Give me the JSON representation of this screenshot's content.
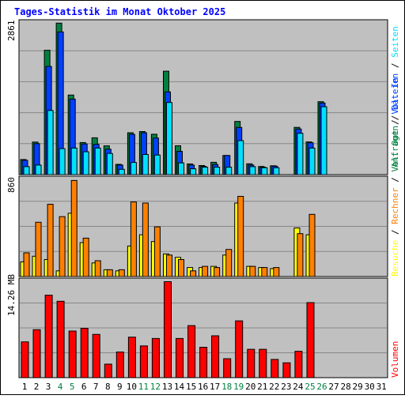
{
  "title": "Tages-Statistik im Monat Oktober 2025",
  "colors": {
    "title": "#0000ff",
    "background": "#c0c0c0",
    "anfragen": "#008040",
    "dateien": "#0040ff",
    "seiten": "#00e0ff",
    "besuche": "#ffff00",
    "rechner": "#ff8000",
    "volout": "#008040",
    "volin": "#0040ff",
    "volumen": "#ff0000",
    "weekend": "#008040"
  },
  "chart_data": [
    {
      "type": "bar",
      "name": "top-panel",
      "y_max_label": "2861",
      "ylim": [
        0,
        2861
      ],
      "x": [
        1,
        2,
        3,
        4,
        5,
        6,
        7,
        8,
        9,
        10,
        11,
        12,
        13,
        14,
        15,
        16,
        17,
        18,
        19,
        20,
        21,
        22,
        23,
        24,
        25,
        26,
        27,
        28,
        29,
        30,
        31
      ],
      "series": [
        {
          "name": "Anfragen",
          "values": [
            285,
            614,
            2345,
            2856,
            1501,
            605,
            694,
            542,
            194,
            790,
            812,
            762,
            1950,
            544,
            201,
            172,
            232,
            360,
            1003,
            204,
            153,
            167,
            0,
            891,
            617,
            1376,
            0,
            0,
            0,
            0,
            0
          ]
        },
        {
          "name": "Dateien",
          "values": [
            270,
            584,
            2040,
            2691,
            1425,
            578,
            570,
            480,
            180,
            760,
            790,
            690,
            1560,
            440,
            180,
            155,
            190,
            360,
            890,
            180,
            140,
            160,
            0,
            860,
            600,
            1350,
            0,
            0,
            0,
            0,
            0
          ]
        },
        {
          "name": "Seiten",
          "values": [
            150,
            180,
            1210,
            490,
            500,
            430,
            500,
            400,
            100,
            230,
            380,
            370,
            1360,
            220,
            110,
            140,
            140,
            140,
            640,
            150,
            130,
            130,
            0,
            780,
            500,
            1280,
            0,
            0,
            0,
            0,
            0
          ]
        }
      ]
    },
    {
      "type": "bar",
      "name": "middle-panel",
      "y_max_label": "860",
      "ylim": [
        0,
        860
      ],
      "x": [
        1,
        2,
        3,
        4,
        5,
        6,
        7,
        8,
        9,
        10,
        11,
        12,
        13,
        14,
        15,
        16,
        17,
        18,
        19,
        20,
        21,
        22,
        23,
        24,
        25,
        26,
        27,
        28,
        29,
        30,
        31
      ],
      "series": [
        {
          "name": "Besuche",
          "values": [
            130,
            180,
            150,
            50,
            560,
            300,
            120,
            60,
            50,
            270,
            370,
            310,
            200,
            170,
            80,
            80,
            90,
            190,
            650,
            90,
            80,
            70,
            0,
            430,
            370,
            0,
            0,
            0,
            0,
            0,
            0
          ]
        },
        {
          "name": "Rechner",
          "values": [
            210,
            480,
            640,
            530,
            850,
            340,
            140,
            60,
            60,
            660,
            650,
            440,
            190,
            150,
            50,
            90,
            80,
            240,
            710,
            90,
            80,
            80,
            0,
            380,
            550,
            0,
            0,
            0,
            0,
            0,
            0
          ]
        }
      ]
    },
    {
      "type": "bar",
      "name": "bottom-panel",
      "y_max_label": "14.26 MB",
      "ylim": [
        0,
        14.26
      ],
      "x": [
        1,
        2,
        3,
        4,
        5,
        6,
        7,
        8,
        9,
        10,
        11,
        12,
        13,
        14,
        15,
        16,
        17,
        18,
        19,
        20,
        21,
        22,
        23,
        24,
        25,
        26,
        27,
        28,
        29,
        30,
        31
      ],
      "series": [
        {
          "name": "Volumen",
          "values": [
            5.3,
            7.1,
            12.2,
            11.3,
            6.9,
            7.3,
            6.4,
            2.0,
            3.8,
            6.0,
            4.7,
            5.8,
            14.2,
            5.8,
            7.7,
            4.5,
            6.2,
            2.8,
            8.4,
            4.2,
            4.2,
            2.7,
            2.2,
            3.9,
            11.1,
            0,
            0,
            0,
            0,
            0,
            0
          ]
        }
      ]
    }
  ],
  "x_labels": [
    "1",
    "2",
    "3",
    "4",
    "5",
    "6",
    "7",
    "8",
    "9",
    "10",
    "11",
    "12",
    "13",
    "14",
    "15",
    "16",
    "17",
    "18",
    "19",
    "20",
    "21",
    "22",
    "23",
    "24",
    "25",
    "26",
    "27",
    "28",
    "29",
    "30",
    "31"
  ],
  "weekend_days": [
    4,
    5,
    11,
    12,
    18,
    19,
    25,
    26
  ],
  "legend_right_top": [
    {
      "text": "Anfragen",
      "color": "#008040"
    },
    {
      "text": "Dateien",
      "color": "#0040ff"
    },
    {
      "text": "Seiten",
      "color": "#00e0ff"
    }
  ],
  "legend_right_mid": [
    {
      "text": "Besuche",
      "color": "#ffff00"
    },
    {
      "text": "Rechner",
      "color": "#ff8000"
    },
    {
      "text": "Vol. Out",
      "color": "#008040"
    },
    {
      "text": "Vol. In",
      "color": "#0040ff"
    }
  ],
  "legend_right_bottom": [
    {
      "text": "Volumen",
      "color": "#ff0000"
    }
  ],
  "legend_separator": "/"
}
